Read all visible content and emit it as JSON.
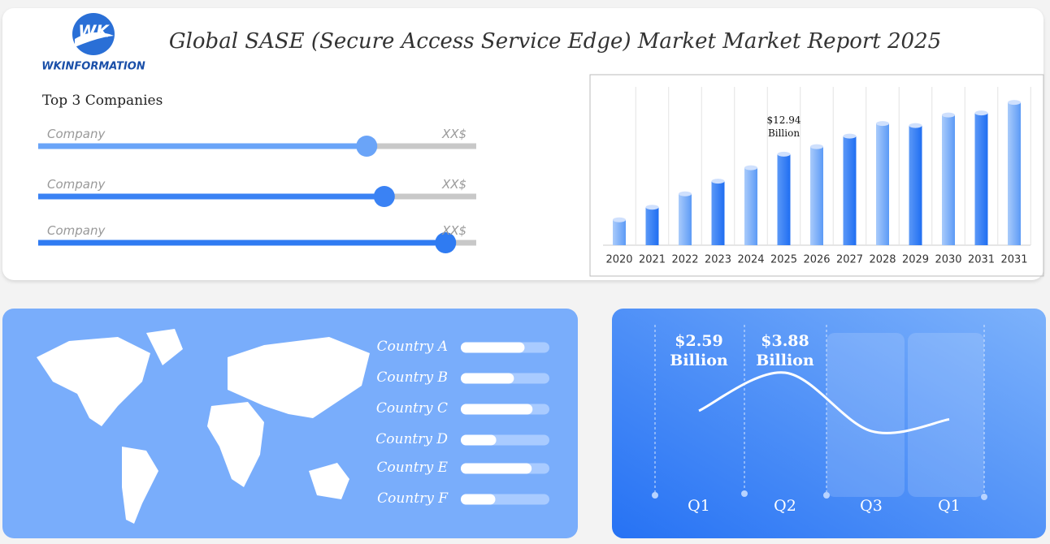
{
  "header": {
    "logo": "WKINFORMATION",
    "title": "Global SASE (Secure Access Service Edge) Market Market Report 2025"
  },
  "chart_data": [
    {
      "type": "bar",
      "orientation": "horizontal",
      "title": "Top 3 Companies",
      "categories": [
        "Company",
        "Company",
        "Company"
      ],
      "amounts": [
        "XX$",
        "XX$",
        "XX$"
      ],
      "values": [
        75,
        79,
        93
      ],
      "xlim": [
        0,
        100
      ],
      "series_colors": [
        "#6aa4f8",
        "#3a82f4",
        "#2f7bf2"
      ],
      "track_color": "#c8c8c8"
    },
    {
      "type": "bar",
      "orientation": "vertical",
      "grid": true,
      "color": "#3f86f5",
      "categories": [
        "2020",
        "2021",
        "2022",
        "2023",
        "2024",
        "2025",
        "2026",
        "2027",
        "2028",
        "2029",
        "2030",
        "2031",
        "2031"
      ],
      "values": [
        3.6,
        5.4,
        7.3,
        9.1,
        11.0,
        12.94,
        14.0,
        15.5,
        17.3,
        17.0,
        18.5,
        18.8,
        20.3
      ],
      "value_labels": [
        null,
        null,
        null,
        null,
        null,
        "$12.94 Billion",
        null,
        null,
        null,
        null,
        null,
        null,
        null
      ],
      "ylim": [
        0,
        22.5
      ]
    },
    {
      "type": "bar",
      "orientation": "horizontal",
      "color": "#ffffff",
      "track_color": "#a9cbff",
      "categories": [
        "Country A",
        "Country B",
        "Country C",
        "Country D",
        "Country E",
        "Country F"
      ],
      "values": [
        72,
        60,
        81,
        40,
        80,
        39
      ],
      "xlim": [
        0,
        100
      ]
    },
    {
      "type": "line",
      "color": "#ffffff",
      "categories": [
        "Q1",
        "Q2",
        "Q3",
        "Q1"
      ],
      "values": [
        2.59,
        3.88,
        1.9,
        2.3
      ],
      "value_labels": [
        "$2.59 Billion",
        "$3.88 Billion",
        null,
        null
      ],
      "ylim": [
        0,
        6
      ]
    }
  ]
}
